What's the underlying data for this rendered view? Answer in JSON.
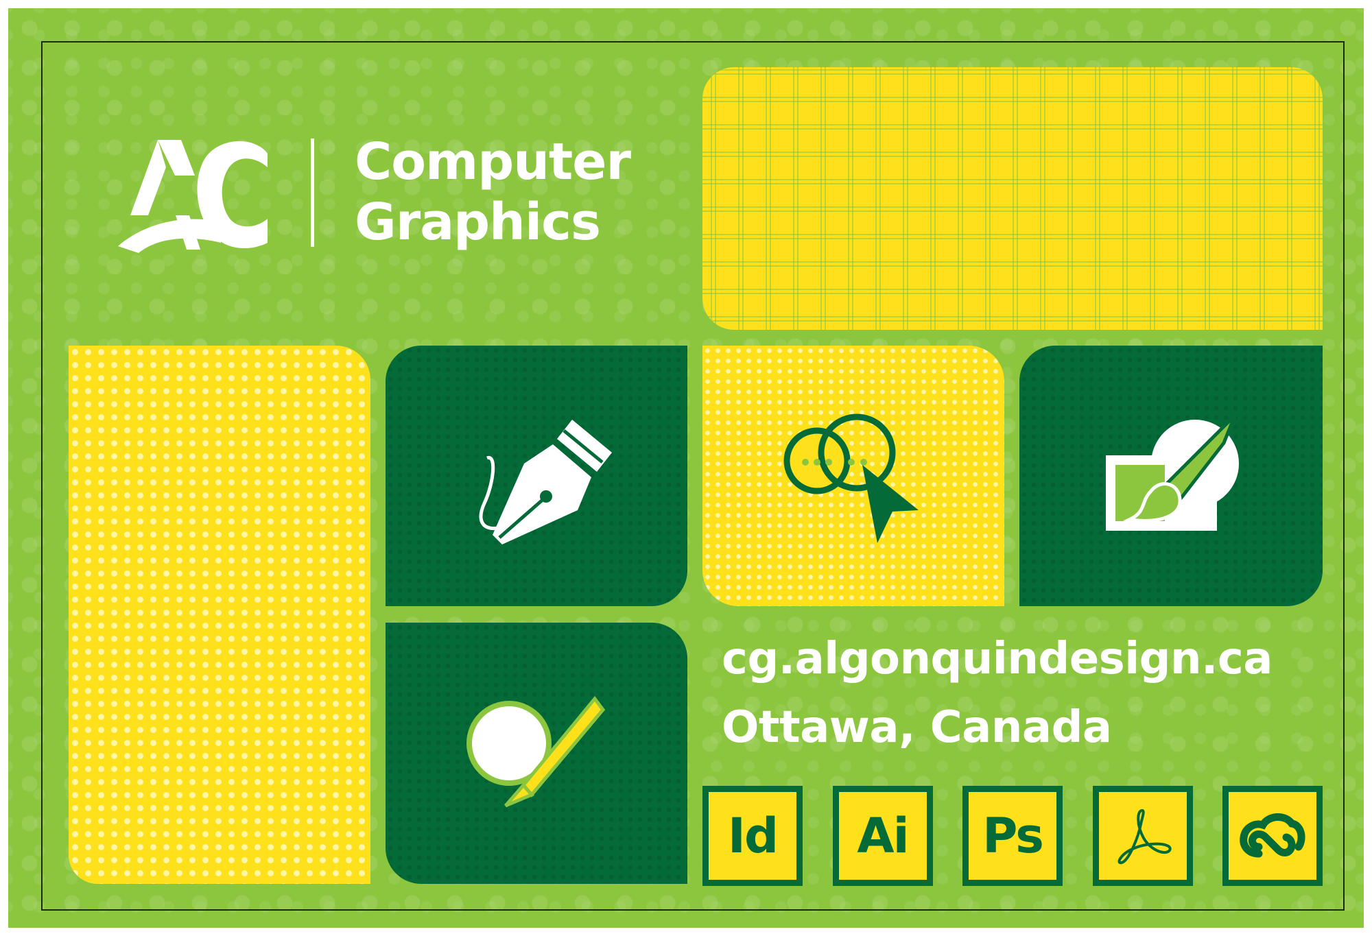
{
  "brand": {
    "logo_text": "AC",
    "title_line1": "Computer",
    "title_line2": "Graphics"
  },
  "contact": {
    "url": "cg.algonquindesign.ca",
    "location": "Ottawa, Canada"
  },
  "apps": [
    {
      "label": "Id",
      "icon": "indesign-icon"
    },
    {
      "label": "Ai",
      "icon": "illustrator-icon"
    },
    {
      "label": "Ps",
      "icon": "photoshop-icon"
    },
    {
      "label": "",
      "icon": "acrobat-icon"
    },
    {
      "label": "",
      "icon": "creative-cloud-icon"
    }
  ],
  "tiles": [
    {
      "icon": "pen-nib-icon"
    },
    {
      "icon": "chat-cursor-icon"
    },
    {
      "icon": "paintbrush-icon"
    },
    {
      "icon": "circle-pencil-icon"
    }
  ],
  "colors": {
    "background_green": "#8cc63f",
    "dark_green": "#046a38",
    "yellow": "#fee01b",
    "white": "#ffffff"
  }
}
